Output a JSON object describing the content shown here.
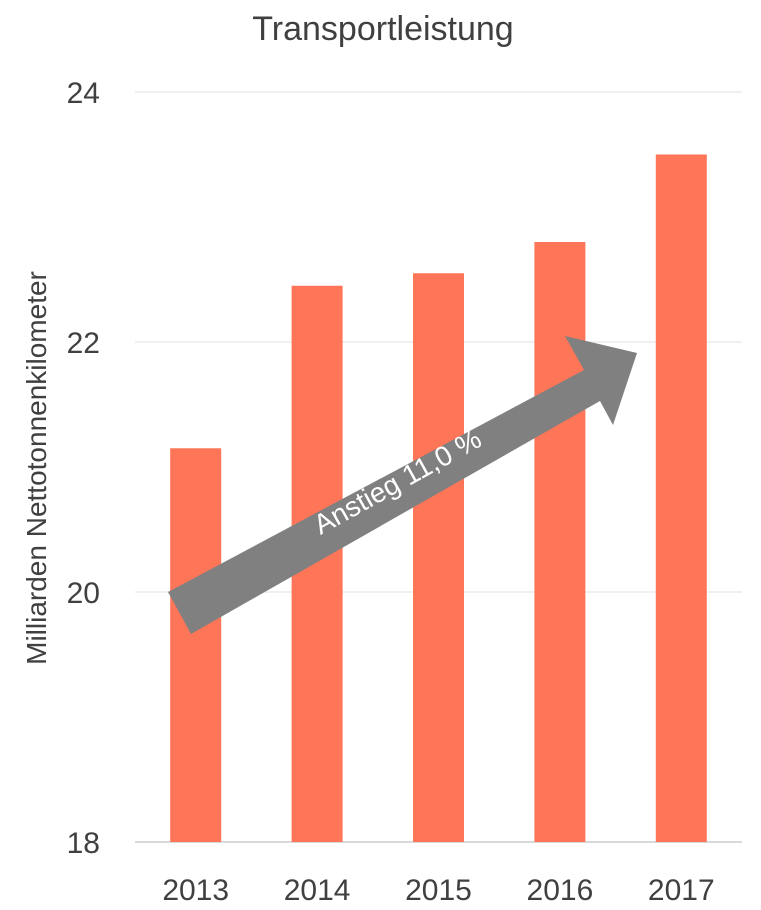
{
  "chart_data": {
    "type": "bar",
    "title": "Transportleistung",
    "xlabel": "",
    "ylabel": "Milliarden Nettotonnenkilometer",
    "categories": [
      "2013",
      "2014",
      "2015",
      "2016",
      "2017"
    ],
    "values": [
      21.15,
      22.45,
      22.55,
      22.8,
      23.5
    ],
    "ylim": [
      18,
      24
    ],
    "yticks": [
      18,
      20,
      22,
      24
    ],
    "grid": true,
    "legend": "none",
    "bar_color": "#ff7558",
    "annotation": {
      "text": "Anstieg 11,0 %",
      "type": "arrow",
      "color": "#808080"
    }
  }
}
